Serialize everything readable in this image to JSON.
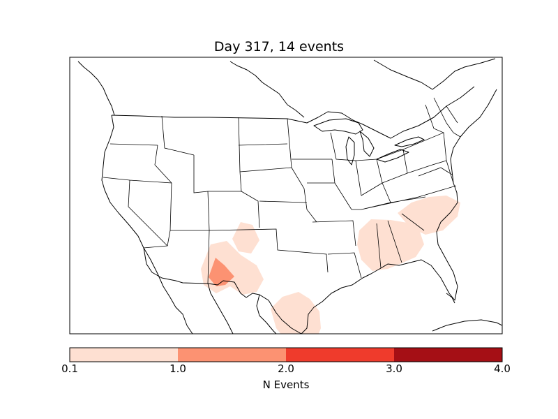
{
  "title": "Day 317, 14 events",
  "colorbar": {
    "label": "N Events",
    "ticks": [
      "0.1",
      "1.0",
      "2.0",
      "3.0",
      "4.0"
    ],
    "bins": [
      {
        "from": 0.1,
        "to": 1.0,
        "color": "#fee0d2"
      },
      {
        "from": 1.0,
        "to": 2.0,
        "color": "#fc9272"
      },
      {
        "from": 2.0,
        "to": 3.0,
        "color": "#ef3b2c"
      },
      {
        "from": 3.0,
        "to": 4.0,
        "color": "#a50f15"
      }
    ]
  },
  "map": {
    "projection": "lambert-conic",
    "region": "Continental United States",
    "event_regions": [
      {
        "name": "texas-panhandle-area",
        "level": 0.5
      },
      {
        "name": "southeast-new-mexico-area",
        "level": 0.5
      },
      {
        "name": "southeast-new-mexico-core",
        "level": 1.5
      },
      {
        "name": "south-texas-coast-area",
        "level": 0.5
      },
      {
        "name": "alabama-georgia-area",
        "level": 0.5
      },
      {
        "name": "carolinas-area",
        "level": 0.5
      }
    ]
  }
}
